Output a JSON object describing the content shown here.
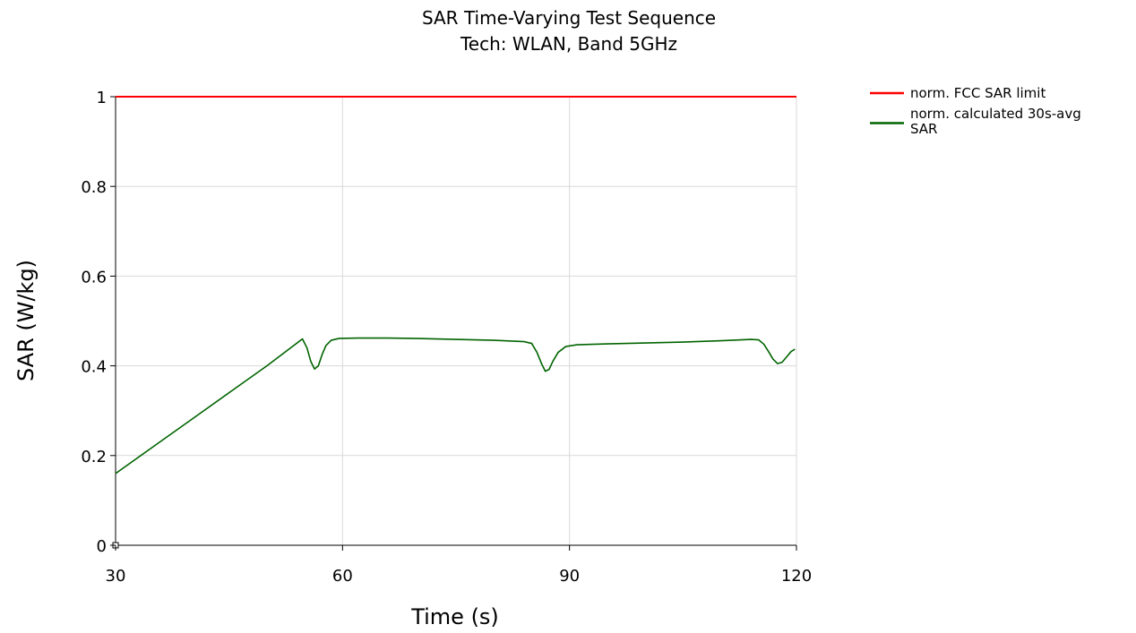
{
  "chart_data": {
    "type": "line",
    "title": "SAR Time-Varying Test Sequence",
    "subtitle": "Tech: WLAN, Band 5GHz",
    "xlabel": "Time (s)",
    "ylabel": "SAR (W/kg)",
    "xlim": [
      30,
      120
    ],
    "ylim": [
      0,
      1
    ],
    "x_ticks": [
      30,
      60,
      90,
      120
    ],
    "y_ticks": [
      0,
      0.2,
      0.4,
      0.6,
      0.8,
      1
    ],
    "x_tick_labels": [
      "30",
      "60",
      "90",
      "120"
    ],
    "y_tick_labels": [
      "0",
      "0.2",
      "0.4",
      "0.6",
      "0.8",
      "1"
    ],
    "grid": true,
    "legend_position": "top-right outside",
    "series": [
      {
        "name": "norm. FCC SAR limit",
        "color": "#ff0000",
        "points": [
          [
            30,
            1.0
          ],
          [
            120,
            1.0
          ]
        ]
      },
      {
        "name": "norm. calculated 30s-avg SAR",
        "color": "#006400",
        "points": [
          [
            30,
            0.16
          ],
          [
            35,
            0.22
          ],
          [
            40,
            0.28
          ],
          [
            45,
            0.34
          ],
          [
            50,
            0.4
          ],
          [
            54.7,
            0.46
          ],
          [
            55.3,
            0.44
          ],
          [
            55.8,
            0.41
          ],
          [
            56.3,
            0.393
          ],
          [
            56.8,
            0.4
          ],
          [
            57.3,
            0.425
          ],
          [
            57.8,
            0.445
          ],
          [
            58.5,
            0.457
          ],
          [
            59.5,
            0.461
          ],
          [
            62,
            0.462
          ],
          [
            66,
            0.462
          ],
          [
            70,
            0.461
          ],
          [
            75,
            0.459
          ],
          [
            80,
            0.457
          ],
          [
            84,
            0.454
          ],
          [
            85,
            0.45
          ],
          [
            85.7,
            0.43
          ],
          [
            86.3,
            0.405
          ],
          [
            86.8,
            0.388
          ],
          [
            87.3,
            0.392
          ],
          [
            87.8,
            0.41
          ],
          [
            88.5,
            0.43
          ],
          [
            89.5,
            0.443
          ],
          [
            91,
            0.447
          ],
          [
            95,
            0.449
          ],
          [
            100,
            0.451
          ],
          [
            105,
            0.453
          ],
          [
            110,
            0.456
          ],
          [
            114,
            0.459
          ],
          [
            115,
            0.458
          ],
          [
            115.7,
            0.448
          ],
          [
            116.3,
            0.432
          ],
          [
            116.9,
            0.415
          ],
          [
            117.5,
            0.405
          ],
          [
            118.1,
            0.408
          ],
          [
            118.7,
            0.42
          ],
          [
            119.3,
            0.432
          ],
          [
            119.8,
            0.437
          ]
        ]
      }
    ]
  }
}
